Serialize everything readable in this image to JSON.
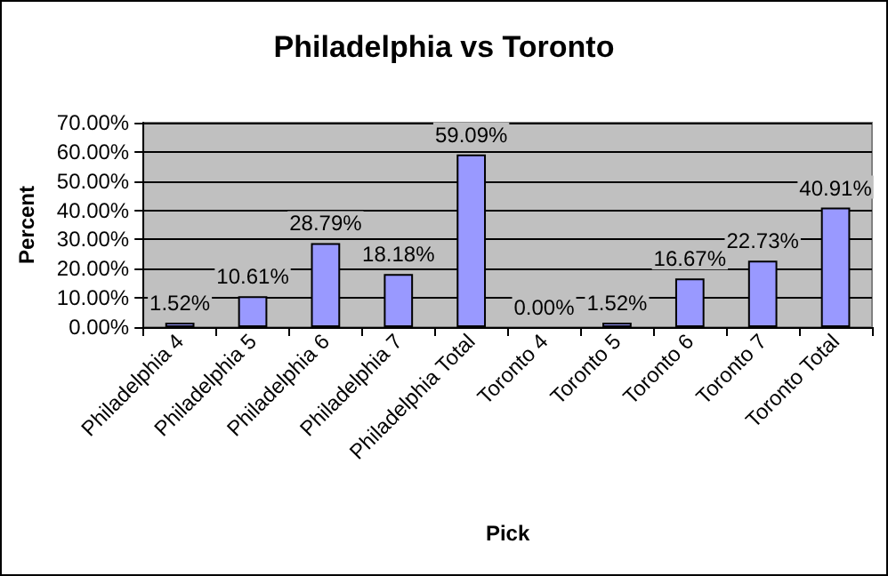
{
  "chart_data": {
    "type": "bar",
    "title": "Philadelphia vs Toronto",
    "xlabel": "Pick",
    "ylabel": "Percent",
    "categories": [
      "Philadelphia 4",
      "Philadelphia 5",
      "Philadelphia 6",
      "Philadelphia 7",
      "Philadelphia Total",
      "Toronto 4",
      "Toronto 5",
      "Toronto 6",
      "Toronto 7",
      "Toronto Total"
    ],
    "values": [
      1.52,
      10.61,
      28.79,
      18.18,
      59.09,
      0,
      1.52,
      16.67,
      22.73,
      40.91
    ],
    "value_labels": [
      "1.52%",
      "10.61%",
      "28.79%",
      "18.18%",
      "59.09%",
      "0.00%",
      "1.52%",
      "16.67%",
      "22.73%",
      "40.91%"
    ],
    "color": "#9999ff",
    "ylim": [
      0,
      70
    ],
    "yticks": [
      {
        "value": 0,
        "label": "0.00%"
      },
      {
        "value": 10,
        "label": "10.00%"
      },
      {
        "value": 20,
        "label": "20.00%"
      },
      {
        "value": 30,
        "label": "30.00%"
      },
      {
        "value": 40,
        "label": "40.00%"
      },
      {
        "value": 50,
        "label": "50.00%"
      },
      {
        "value": 60,
        "label": "60.00%"
      },
      {
        "value": 70,
        "label": "70.00%"
      }
    ],
    "grid": "y"
  }
}
